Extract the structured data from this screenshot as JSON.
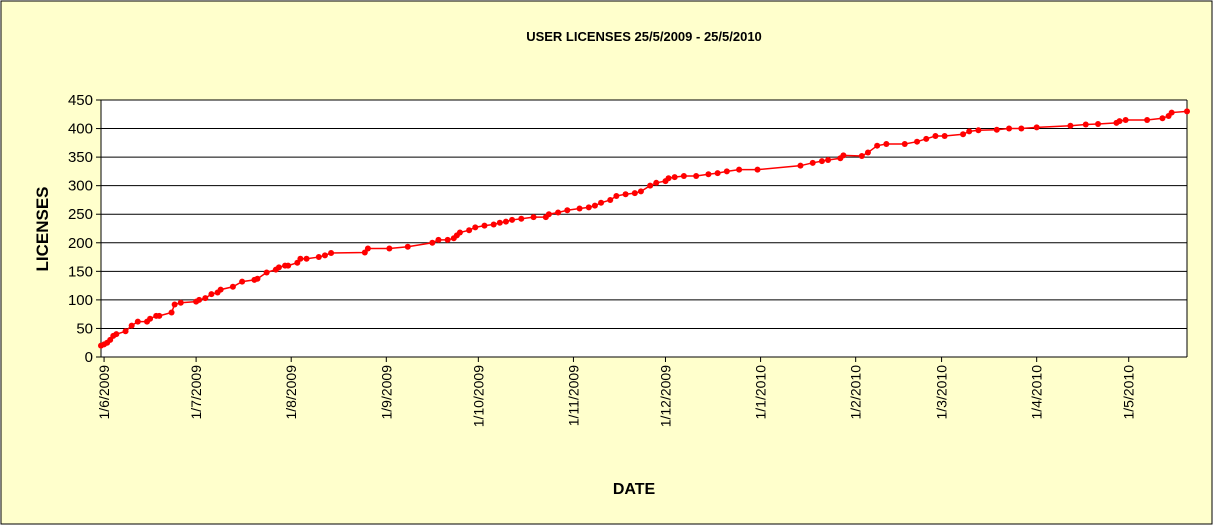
{
  "chart_data": {
    "type": "line",
    "title": "USER LICENSES  25/5/2009 - 25/5/2010",
    "x_label": "DATE",
    "y_label": "LICENSES",
    "color": "#ff0000",
    "grid": true,
    "x": [
      "2009-05-31",
      "2009-06-01",
      "2009-06-02",
      "2009-06-03",
      "2009-06-04",
      "2009-06-05",
      "2009-06-08",
      "2009-06-10",
      "2009-06-12",
      "2009-06-15",
      "2009-06-16",
      "2009-06-18",
      "2009-06-19",
      "2009-06-23",
      "2009-06-24",
      "2009-06-26",
      "2009-07-01",
      "2009-07-02",
      "2009-07-04",
      "2009-07-06",
      "2009-07-08",
      "2009-07-09",
      "2009-07-13",
      "2009-07-16",
      "2009-07-20",
      "2009-07-21",
      "2009-07-24",
      "2009-07-27",
      "2009-07-28",
      "2009-07-30",
      "2009-07-31",
      "2009-08-03",
      "2009-08-04",
      "2009-08-06",
      "2009-08-10",
      "2009-08-12",
      "2009-08-14",
      "2009-08-25",
      "2009-08-26",
      "2009-09-02",
      "2009-09-08",
      "2009-09-16",
      "2009-09-18",
      "2009-09-21",
      "2009-09-23",
      "2009-09-24",
      "2009-09-25",
      "2009-09-28",
      "2009-09-30",
      "2009-10-03",
      "2009-10-06",
      "2009-10-08",
      "2009-10-10",
      "2009-10-12",
      "2009-10-15",
      "2009-10-19",
      "2009-10-23",
      "2009-10-24",
      "2009-10-27",
      "2009-10-30",
      "2009-11-03",
      "2009-11-06",
      "2009-11-08",
      "2009-11-10",
      "2009-11-13",
      "2009-11-15",
      "2009-11-18",
      "2009-11-21",
      "2009-11-23",
      "2009-11-26",
      "2009-11-28",
      "2009-12-01",
      "2009-12-02",
      "2009-12-04",
      "2009-12-07",
      "2009-12-11",
      "2009-12-15",
      "2009-12-18",
      "2009-12-21",
      "2009-12-25",
      "2009-12-31",
      "2010-01-14",
      "2010-01-18",
      "2010-01-21",
      "2010-01-23",
      "2010-01-27",
      "2010-01-28",
      "2010-02-03",
      "2010-02-05",
      "2010-02-08",
      "2010-02-11",
      "2010-02-17",
      "2010-02-21",
      "2010-02-24",
      "2010-02-27",
      "2010-03-02",
      "2010-03-08",
      "2010-03-10",
      "2010-03-13",
      "2010-03-19",
      "2010-03-23",
      "2010-03-27",
      "2010-04-01",
      "2010-04-12",
      "2010-04-17",
      "2010-04-21",
      "2010-04-27",
      "2010-04-28",
      "2010-04-30",
      "2010-05-07",
      "2010-05-12",
      "2010-05-14",
      "2010-05-15",
      "2010-05-20"
    ],
    "values": [
      20,
      22,
      25,
      30,
      37,
      40,
      45,
      55,
      62,
      62,
      67,
      72,
      72,
      78,
      92,
      95,
      97,
      100,
      103,
      110,
      113,
      118,
      123,
      132,
      135,
      137,
      148,
      153,
      157,
      160,
      160,
      165,
      172,
      172,
      175,
      178,
      182,
      183,
      190,
      190,
      193,
      200,
      205,
      205,
      208,
      213,
      218,
      222,
      227,
      230,
      232,
      235,
      237,
      240,
      242,
      245,
      245,
      250,
      253,
      257,
      260,
      262,
      265,
      270,
      275,
      282,
      285,
      287,
      290,
      300,
      305,
      308,
      313,
      315,
      317,
      317,
      320,
      322,
      325,
      328,
      328,
      335,
      340,
      343,
      345,
      348,
      353,
      352,
      358,
      370,
      373,
      373,
      377,
      382,
      387,
      387,
      390,
      395,
      397,
      398,
      400,
      400,
      402,
      405,
      407,
      408,
      410,
      413,
      415,
      415,
      418,
      422,
      428,
      430
    ],
    "xlim": [
      "2009-05-31",
      "2010-05-20"
    ],
    "xticks": [
      {
        "value": "2009-06-01",
        "label": "1/6/2009"
      },
      {
        "value": "2009-07-01",
        "label": "1/7/2009"
      },
      {
        "value": "2009-08-01",
        "label": "1/8/2009"
      },
      {
        "value": "2009-09-01",
        "label": "1/9/2009"
      },
      {
        "value": "2009-10-01",
        "label": "1/10/2009"
      },
      {
        "value": "2009-11-01",
        "label": "1/11/2009"
      },
      {
        "value": "2009-12-01",
        "label": "1/12/2009"
      },
      {
        "value": "2010-01-01",
        "label": "1/1/2010"
      },
      {
        "value": "2010-02-01",
        "label": "1/2/2010"
      },
      {
        "value": "2010-03-01",
        "label": "1/3/2010"
      },
      {
        "value": "2010-04-01",
        "label": "1/4/2010"
      },
      {
        "value": "2010-05-01",
        "label": "1/5/2010"
      }
    ],
    "ylim": [
      0,
      450
    ],
    "yticks": [
      0,
      50,
      100,
      150,
      200,
      250,
      300,
      350,
      400,
      450
    ]
  }
}
